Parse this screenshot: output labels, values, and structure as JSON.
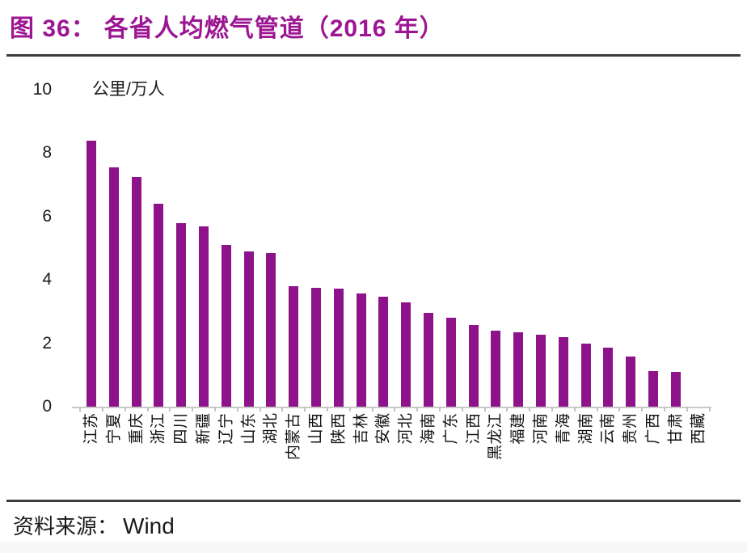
{
  "figure": {
    "label": "图 36：",
    "title": "各省人均燃气管道（2016 年）"
  },
  "chart_data": {
    "type": "bar",
    "title": "各省人均燃气管道（2016 年）",
    "xlabel": "",
    "ylabel": "公里/万人",
    "ylim": [
      0,
      10
    ],
    "yticks": [
      0,
      2,
      4,
      6,
      8,
      10
    ],
    "grid": false,
    "legend": false,
    "bar_color": "#8E1289",
    "categories": [
      "江苏",
      "宁夏",
      "重庆",
      "浙江",
      "四川",
      "新疆",
      "辽宁",
      "山东",
      "湖北",
      "内蒙古",
      "山西",
      "陕西",
      "吉林",
      "安徽",
      "河北",
      "海南",
      "广东",
      "江西",
      "黑龙江",
      "福建",
      "河南",
      "青海",
      "湖南",
      "云南",
      "贵州",
      "广西",
      "甘肃",
      "西藏"
    ],
    "values": [
      8.4,
      7.55,
      7.25,
      6.4,
      5.8,
      5.7,
      5.1,
      4.9,
      4.85,
      3.8,
      3.76,
      3.72,
      3.58,
      3.48,
      3.3,
      2.95,
      2.8,
      2.57,
      2.4,
      2.35,
      2.26,
      2.19,
      2.0,
      1.87,
      1.57,
      1.13,
      1.1,
      0
    ]
  },
  "footer": {
    "source_label": "资料来源：",
    "source_value": "Wind"
  },
  "colors": {
    "title": "#9C1693",
    "bar": "#8E1289",
    "axis_line": "#c9c9c9",
    "rule": "#3b3b3b"
  }
}
